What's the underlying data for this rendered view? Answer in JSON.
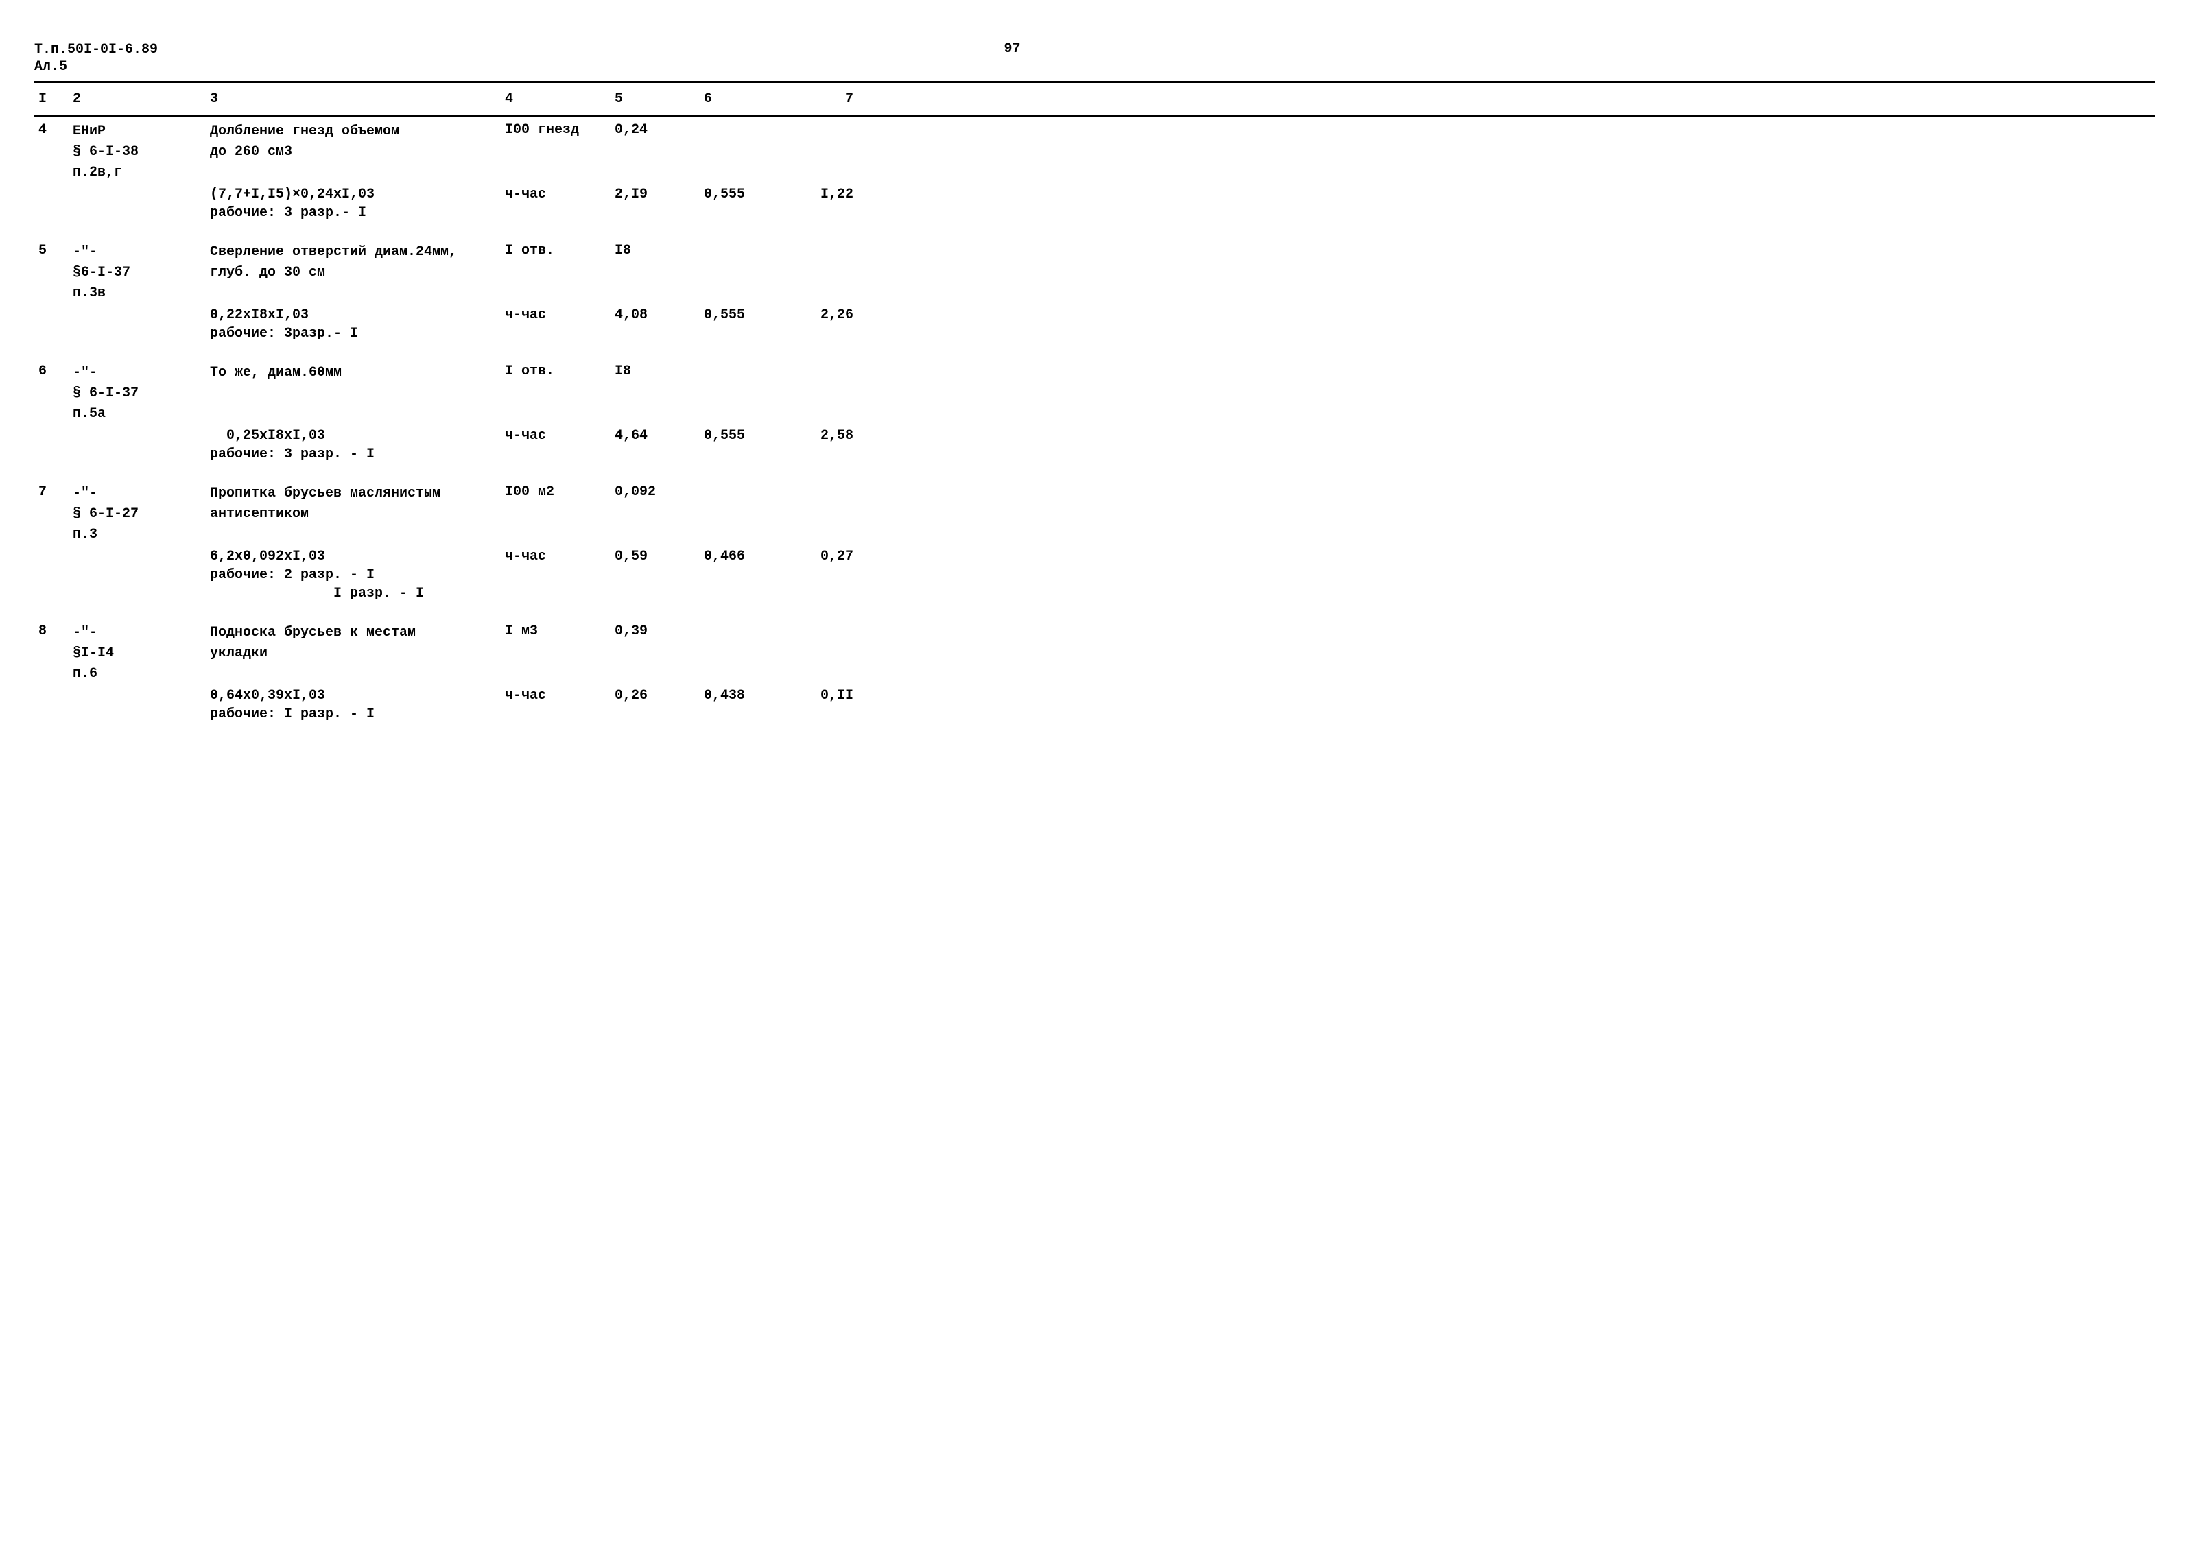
{
  "doc": {
    "id_line1": "Т.п.50I-0I-6.89",
    "id_line2": "Ал.5",
    "page_number": "97"
  },
  "columns": {
    "c1": "I",
    "c2": "2",
    "c3": "3",
    "c4": "4",
    "c5": "5",
    "c6": "6",
    "c7": "7"
  },
  "rows": [
    {
      "n": "4",
      "ref1": "ЕНиР",
      "ref2": "§ 6-I-38",
      "ref3": "п.2в,г",
      "desc1": "Долбление гнезд объемом",
      "desc2": "до 260 см3",
      "unit1": "I00 гнезд",
      "val1": "0,24",
      "calc": "(7,7+I,I5)×0,24хI,03",
      "unit2": "ч-час",
      "val2": "2,I9",
      "rate": "0,555",
      "cost": "I,22",
      "workers": "рабочие: 3 разр.- I"
    },
    {
      "n": "5",
      "ref1": "-\"-",
      "ref2": "§6-I-37",
      "ref3": "п.3в",
      "desc1": "Сверление отверстий диам.24мм,",
      "desc2": "глуб. до 30 см",
      "unit1": "I отв.",
      "val1": "I8",
      "calc": "0,22хI8хI,03",
      "unit2": "ч-час",
      "val2": "4,08",
      "rate": "0,555",
      "cost": "2,26",
      "workers": "рабочие: 3разр.- I"
    },
    {
      "n": "6",
      "ref1": "-\"-",
      "ref2": "§ 6-I-37",
      "ref3": "п.5а",
      "desc1": "То же, диам.60мм",
      "desc2": "",
      "unit1": "I отв.",
      "val1": "I8",
      "calc": "  0,25хI8хI,03",
      "unit2": "ч-час",
      "val2": "4,64",
      "rate": "0,555",
      "cost": "2,58",
      "workers": "рабочие: 3 разр. - I"
    },
    {
      "n": "7",
      "ref1": "-\"-",
      "ref2": "§ 6-I-27",
      "ref3": "п.3",
      "desc1": "Пропитка брусьев маслянистым",
      "desc2": "антисептиком",
      "unit1": "I00 м2",
      "val1": "0,092",
      "calc": "6,2х0,092хI,03",
      "unit2": "ч-час",
      "val2": "0,59",
      "rate": "0,466",
      "cost": "0,27",
      "workers": "рабочие: 2 разр. - I",
      "workers2": "        I разр. - I"
    },
    {
      "n": "8",
      "ref1": "-\"-",
      "ref2": "§I-I4",
      "ref3": "п.6",
      "desc1": "Подноска брусьев к местам",
      "desc2": "укладки",
      "unit1": "I м3",
      "val1": "0,39",
      "calc": "0,64х0,39хI,03",
      "unit2": "ч-час",
      "val2": "0,26",
      "rate": "0,438",
      "cost": "0,II",
      "workers": "рабочие: I разр. - I"
    }
  ]
}
